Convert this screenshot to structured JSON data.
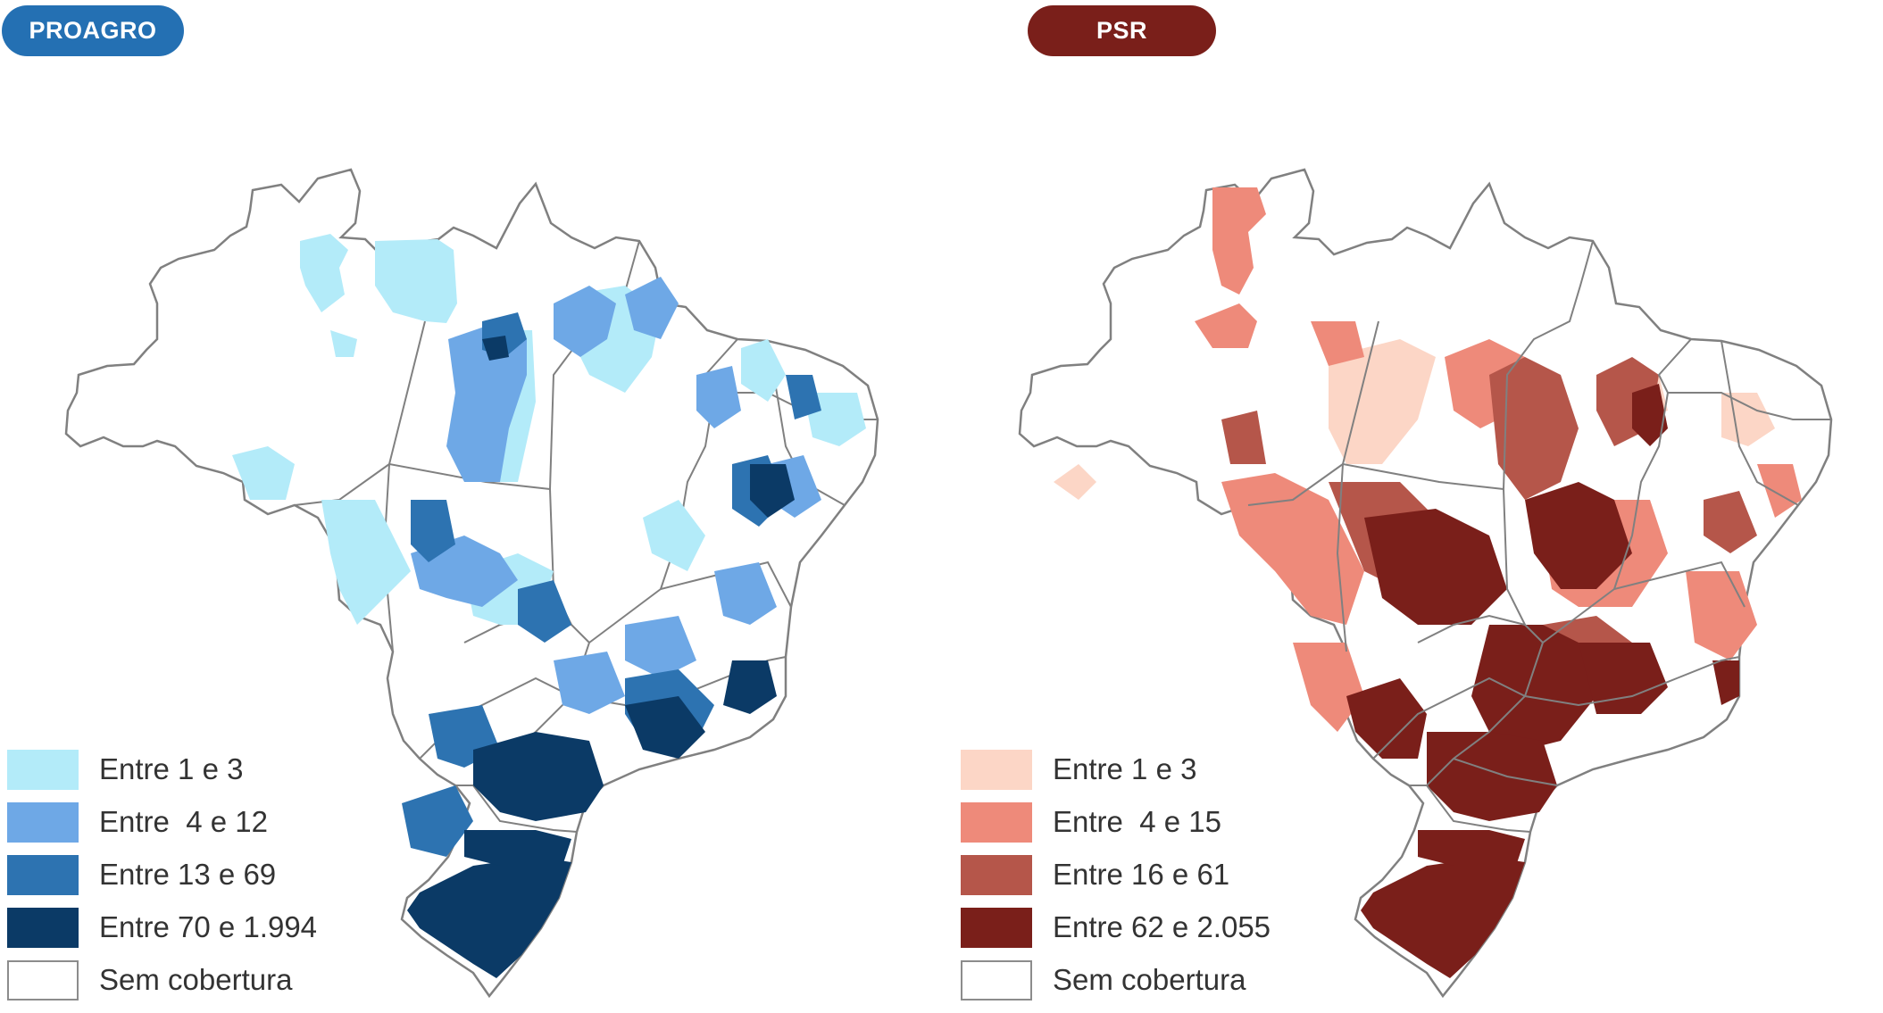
{
  "colors": {
    "proagro_pill": "#2470b3",
    "psr_pill": "#7a1f1a",
    "state_border": "#808080",
    "proagro": [
      "#b3ebf9",
      "#6ea8e6",
      "#2d73b1",
      "#0b3a66"
    ],
    "psr": [
      "#fcd6c6",
      "#ee8a7a",
      "#b5564a",
      "#7a1f1a"
    ]
  },
  "panels": [
    {
      "id": "proagro",
      "title": "PROAGRO",
      "legend": [
        {
          "label": "Entre 1 e 3",
          "color": "#b3ebf9"
        },
        {
          "label": "Entre  4 e 12",
          "color": "#6ea8e6"
        },
        {
          "label": "Entre 13 e 69",
          "color": "#2d73b1"
        },
        {
          "label": "Entre 70 e 1.994",
          "color": "#0b3a66"
        },
        {
          "label": "Sem cobertura",
          "color": "#ffffff"
        }
      ]
    },
    {
      "id": "psr",
      "title": "PSR",
      "legend": [
        {
          "label": "Entre 1 e 3",
          "color": "#fcd6c6"
        },
        {
          "label": "Entre  4 e 15",
          "color": "#ee8a7a"
        },
        {
          "label": "Entre 16 e 61",
          "color": "#b5564a"
        },
        {
          "label": "Entre 62 e 2.055",
          "color": "#7a1f1a"
        },
        {
          "label": "Sem cobertura",
          "color": "#ffffff"
        }
      ]
    }
  ]
}
